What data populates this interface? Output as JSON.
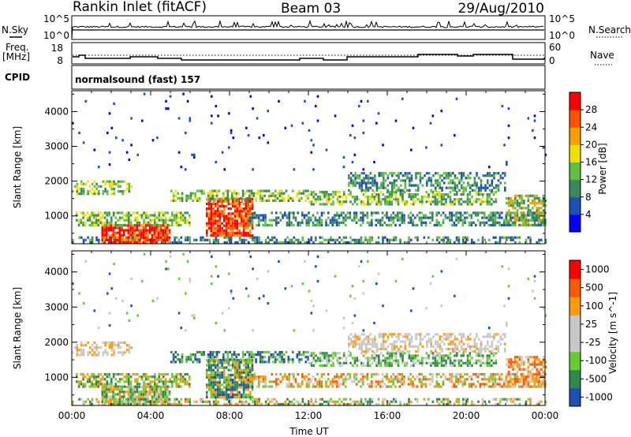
{
  "header": {
    "station": "Rankin Inlet (fitACF)",
    "beam": "Beam 03",
    "date": "29/Aug/2010"
  },
  "nsky_panel": {
    "left_label": "N.Sky",
    "right_label": "N.Search",
    "left_ticks": [
      "10^5",
      "10^0"
    ],
    "right_ticks": [
      "10^5",
      "10^0"
    ]
  },
  "freq_panel": {
    "left_label_line1": "Freq.",
    "left_label_line2": "[MHz]",
    "right_label": "Nave",
    "left_ticks": [
      "18",
      "8"
    ],
    "right_ticks": [
      "60",
      "0"
    ]
  },
  "cpid_panel": {
    "label": "CPID",
    "program": "normalsound (fast) 157"
  },
  "colors": {
    "power_scale": [
      "#0000ff",
      "#1e4fb4",
      "#3a8a58",
      "#5fbf3f",
      "#f0e000",
      "#f5a000",
      "#ff5000",
      "#ff0000"
    ],
    "velocity_scale": [
      "#ff0000",
      "#ff5a00",
      "#ff9a10",
      "#c8c8c8",
      "#c8c8c8",
      "#66cc33",
      "#2f8a4a",
      "#1f4fb4"
    ]
  },
  "chart_data": [
    {
      "type": "heatmap",
      "title": "",
      "xlabel": "",
      "ylabel": "Slant Range [km]",
      "xlim": [
        0,
        24
      ],
      "ylim": [
        200,
        4600
      ],
      "x_tick_labels": [
        "00:00",
        "04:00",
        "08:00",
        "12:00",
        "16:00",
        "20:00",
        "00:00"
      ],
      "y_ticks": [
        1000,
        2000,
        3000,
        4000
      ],
      "y_tick_labels": [
        "1000",
        "2000",
        "3000",
        "4000"
      ],
      "colorbar": {
        "label": "Power [dB]",
        "range": [
          0,
          32
        ],
        "ticks": [
          "4",
          "8",
          "12",
          "16",
          "20",
          "24",
          "28"
        ]
      }
    },
    {
      "type": "heatmap",
      "title": "",
      "xlabel": "Time UT",
      "ylabel": "Slant Range [km]",
      "xlim": [
        0,
        24
      ],
      "ylim": [
        200,
        4600
      ],
      "x_tick_labels": [
        "00:00",
        "04:00",
        "08:00",
        "12:00",
        "16:00",
        "20:00",
        "00:00"
      ],
      "y_ticks": [
        1000,
        2000,
        3000,
        4000
      ],
      "y_tick_labels": [
        "1000",
        "2000",
        "3000",
        "4000"
      ],
      "colorbar": {
        "label": "Velocity [m s^-1]",
        "ticks": [
          "1000",
          "500",
          "100",
          "25",
          "-25",
          "-100",
          "-500",
          "-1000"
        ]
      }
    }
  ]
}
